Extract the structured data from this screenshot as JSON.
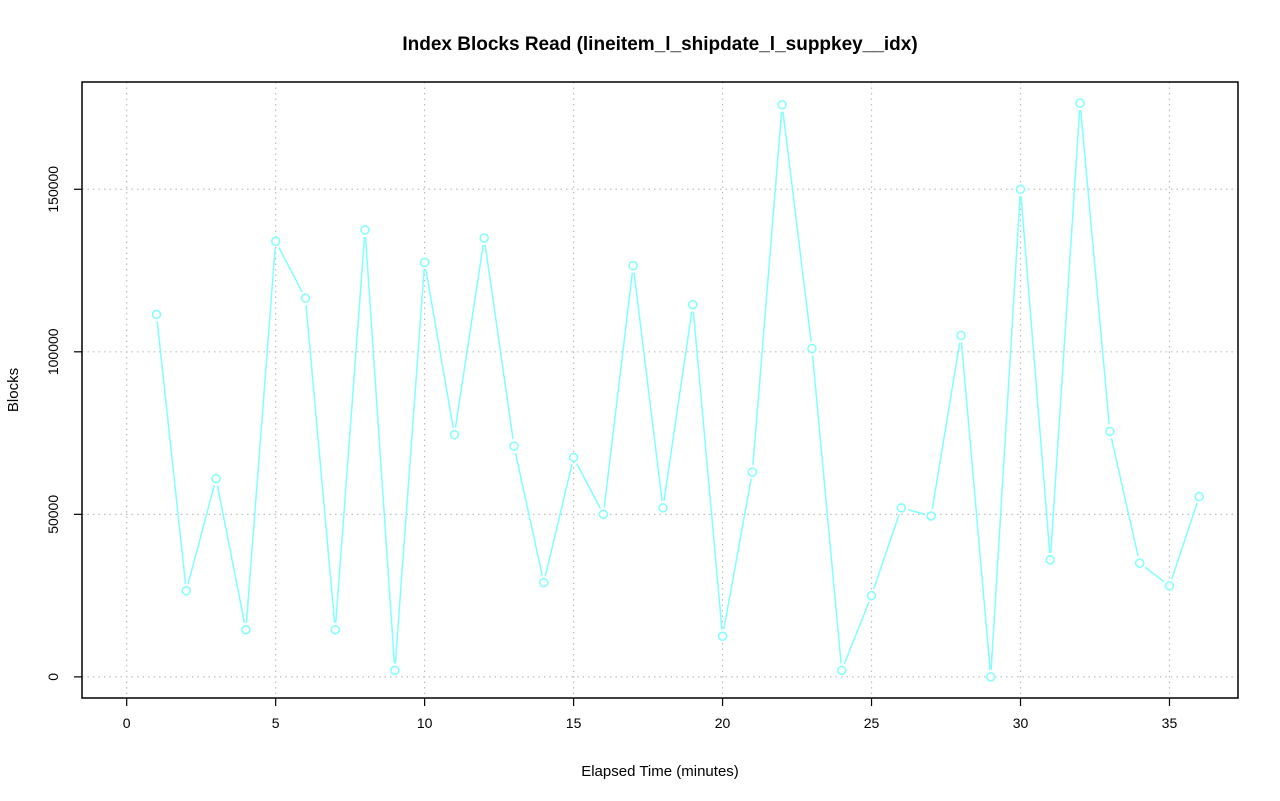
{
  "chart_data": {
    "type": "line",
    "title": "Index Blocks Read (lineitem_l_shipdate_l_suppkey__idx)",
    "xlabel": "Elapsed Time (minutes)",
    "ylabel": "Blocks",
    "xlim": [
      -1.5,
      37.3
    ],
    "ylim": [
      -6500,
      183000
    ],
    "x_ticks": [
      0,
      5,
      10,
      15,
      20,
      25,
      30,
      35
    ],
    "y_ticks": [
      0,
      50000,
      100000,
      150000
    ],
    "grid": true,
    "series_color": "#7fffff",
    "series": [
      {
        "x": [
          1,
          2,
          3,
          4,
          5,
          6,
          7,
          8,
          9,
          10,
          11,
          12,
          13,
          14,
          15,
          16,
          17,
          18,
          19,
          20,
          21,
          22,
          23,
          24,
          25,
          26,
          27,
          28,
          29,
          30,
          31,
          32,
          33,
          34,
          35,
          36
        ],
        "values": [
          111500,
          26500,
          61000,
          14500,
          134000,
          116500,
          14500,
          137500,
          2000,
          127500,
          74500,
          135000,
          71000,
          29000,
          67500,
          50000,
          126500,
          52000,
          114500,
          12500,
          63000,
          176000,
          101000,
          2000,
          25000,
          52000,
          49500,
          105000,
          0,
          150000,
          36000,
          176500,
          75500,
          35000,
          28000,
          55500
        ]
      }
    ]
  }
}
